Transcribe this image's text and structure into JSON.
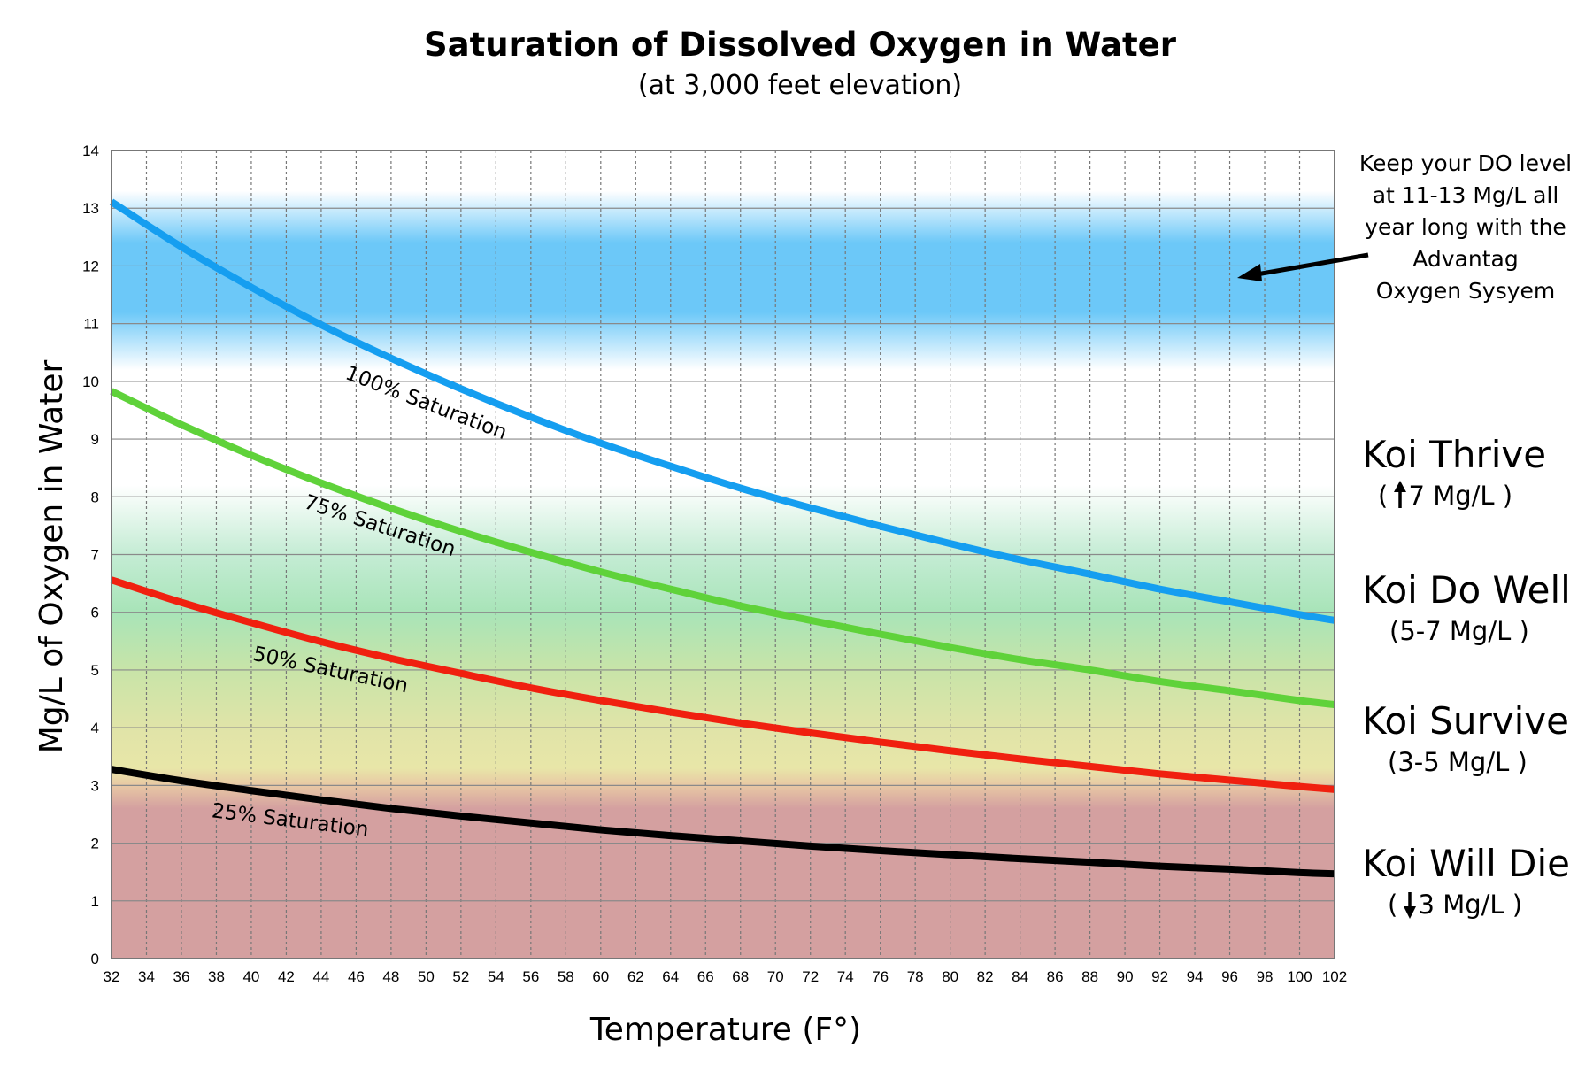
{
  "chart_data": {
    "type": "line",
    "title": "Saturation of Dissolved Oxygen in Water",
    "subtitle": "(at 3,000 feet elevation)",
    "xlabel": "Temperature (F°)",
    "ylabel": "Mg/L of Oxygen in Water",
    "xlim": [
      32,
      102
    ],
    "ylim": [
      0,
      14
    ],
    "grid": true,
    "x_ticks": [
      "32",
      "34",
      "36",
      "38",
      "40",
      "42",
      "44",
      "46",
      "48",
      "50",
      "52",
      "54",
      "56",
      "58",
      "60",
      "62",
      "64",
      "66",
      "68",
      "70",
      "72",
      "74",
      "76",
      "78",
      "80",
      "82",
      "84",
      "86",
      "88",
      "90",
      "92",
      "94",
      "96",
      "98",
      "100",
      "102"
    ],
    "y_ticks": [
      "0",
      "1",
      "2",
      "3",
      "4",
      "5",
      "6",
      "7",
      "8",
      "9",
      "10",
      "11",
      "12",
      "13",
      "14"
    ],
    "x": [
      32,
      36,
      40,
      44,
      48,
      52,
      56,
      60,
      64,
      68,
      72,
      76,
      80,
      84,
      88,
      92,
      96,
      100,
      102
    ],
    "series": [
      {
        "name": "100% Saturation",
        "color": "#159ef0",
        "values": [
          13.11,
          12.33,
          11.63,
          10.98,
          10.4,
          9.87,
          9.38,
          8.93,
          8.53,
          8.15,
          7.81,
          7.49,
          7.19,
          6.91,
          6.66,
          6.4,
          6.18,
          5.96,
          5.86
        ]
      },
      {
        "name": "75% Saturation",
        "color": "#5fd23a",
        "values": [
          9.83,
          9.25,
          8.72,
          8.24,
          7.8,
          7.4,
          7.04,
          6.7,
          6.4,
          6.11,
          5.86,
          5.62,
          5.39,
          5.18,
          5.0,
          4.8,
          4.64,
          4.47,
          4.4
        ]
      },
      {
        "name": "50% Saturation",
        "color": "#f0200f",
        "values": [
          6.56,
          6.17,
          5.82,
          5.49,
          5.2,
          4.94,
          4.69,
          4.47,
          4.27,
          4.08,
          3.91,
          3.75,
          3.6,
          3.46,
          3.33,
          3.2,
          3.09,
          2.98,
          2.93
        ]
      },
      {
        "name": "25% Saturation",
        "color": "#000000",
        "values": [
          3.28,
          3.08,
          2.91,
          2.75,
          2.6,
          2.47,
          2.35,
          2.23,
          2.13,
          2.04,
          1.95,
          1.87,
          1.8,
          1.73,
          1.67,
          1.6,
          1.55,
          1.49,
          1.47
        ]
      }
    ],
    "bands": [
      {
        "range": [
          11,
          13
        ],
        "color": "#6cc8f8"
      },
      {
        "range": [
          5,
          7
        ],
        "color": "#a8e4b8"
      },
      {
        "range": [
          3,
          5
        ],
        "color": "#e8e6a8"
      },
      {
        "range": [
          0,
          3
        ],
        "color": "#d4a0a0"
      }
    ],
    "annotation": {
      "lines": [
        "Keep your DO level",
        "at 11-13 Mg/L all",
        "year long with the",
        "Advantag",
        "Oxygen Sysyem"
      ],
      "arrow_target": {
        "x": 96,
        "y": 11.8
      }
    },
    "zones": [
      {
        "label": "Koi Thrive",
        "range_label": "( ",
        "arrow": "up",
        "range_value": "7 Mg/L )"
      },
      {
        "label": "Koi Do Well",
        "range_label": "(5-7 Mg/L )"
      },
      {
        "label": "Koi Survive",
        "range_label": "(3-5 Mg/L )"
      },
      {
        "label": "Koi Will Die",
        "range_label": "( ",
        "arrow": "down",
        "range_value": "3 Mg/L )"
      }
    ]
  }
}
